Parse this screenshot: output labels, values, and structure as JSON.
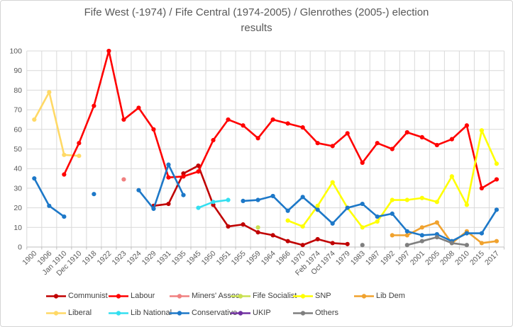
{
  "chart_data": {
    "type": "line",
    "title": "Fife West (-1974) / Fife Central (1974-2005) / Glenrothes (2005-) election results",
    "title_lines": [
      "Fife West (-1974) / Fife Central (1974-2005) / Glenrothes (2005-) election",
      "results"
    ],
    "xlabel": "",
    "ylabel": "",
    "ylim": [
      0,
      100
    ],
    "ytick_step": 10,
    "grid": true,
    "marker": "circle",
    "x_tick_rotation": 45,
    "legend_position": "bottom",
    "values_unit": "percent vote share",
    "categories": [
      "1900",
      "1906",
      "Jan 1910",
      "Dec 1910",
      "1918",
      "1922",
      "1923",
      "1924",
      "1929",
      "1931",
      "1935",
      "1945",
      "1950",
      "1951",
      "1955",
      "1959",
      "1964",
      "1966",
      "1970",
      "Feb 1974",
      "Oct 1974",
      "1979",
      "1983",
      "1987",
      "1992",
      "1997",
      "2001",
      "2005",
      "2008",
      "2010",
      "2015",
      "2017"
    ],
    "legend_rows": [
      [
        "Communist",
        "Labour",
        "Miners' Assoc",
        "Fife Socialist",
        "SNP",
        "Lib Dem"
      ],
      [
        "Liberal",
        "Lib National",
        "Conservative",
        "UKIP",
        "Others"
      ]
    ],
    "series": [
      {
        "name": "Communist",
        "color": "#c00000",
        "values": [
          null,
          null,
          null,
          null,
          null,
          null,
          null,
          null,
          21,
          22,
          37.5,
          41.5,
          21.5,
          10.5,
          11.5,
          7.5,
          6,
          3,
          1,
          4,
          2,
          1.5,
          null,
          null,
          null,
          null,
          null,
          null,
          null,
          null,
          null,
          null
        ]
      },
      {
        "name": "Labour",
        "color": "#ff0000",
        "values": [
          null,
          null,
          37,
          53,
          72,
          100,
          65,
          71,
          60,
          35.5,
          36,
          38.5,
          54.5,
          65,
          62,
          55.5,
          65,
          63,
          61,
          53,
          51.5,
          58,
          43,
          53,
          50,
          58.5,
          56,
          52,
          55,
          62,
          30,
          34.5
        ]
      },
      {
        "name": "Miners' Assoc",
        "color": "#f08080",
        "values": [
          null,
          null,
          null,
          null,
          null,
          null,
          34.5,
          null,
          null,
          null,
          null,
          null,
          null,
          null,
          null,
          null,
          null,
          null,
          null,
          null,
          null,
          null,
          null,
          null,
          null,
          null,
          null,
          null,
          null,
          null,
          null,
          null
        ]
      },
      {
        "name": "Fife Socialist",
        "color": "#c9e052",
        "values": [
          null,
          null,
          null,
          null,
          null,
          null,
          null,
          null,
          null,
          null,
          null,
          null,
          null,
          null,
          null,
          10,
          null,
          null,
          null,
          null,
          null,
          null,
          null,
          null,
          null,
          null,
          null,
          null,
          null,
          null,
          null,
          null
        ]
      },
      {
        "name": "SNP",
        "color": "#ffff00",
        "values": [
          null,
          null,
          null,
          null,
          null,
          null,
          null,
          null,
          null,
          null,
          null,
          null,
          null,
          null,
          null,
          null,
          null,
          13.5,
          10.5,
          21,
          33,
          20,
          10,
          13,
          24,
          24,
          25,
          23,
          36,
          21.5,
          59.5,
          42.5
        ]
      },
      {
        "name": "Lib Dem",
        "color": "#f0a22e",
        "values": [
          null,
          null,
          null,
          null,
          null,
          null,
          null,
          null,
          null,
          null,
          null,
          null,
          null,
          null,
          null,
          null,
          null,
          null,
          null,
          null,
          null,
          null,
          null,
          null,
          6,
          6,
          10,
          12.5,
          2,
          8,
          2,
          3
        ]
      },
      {
        "name": "Liberal",
        "color": "#ffd966",
        "values": [
          65,
          79,
          47,
          46.5,
          null,
          null,
          null,
          null,
          null,
          null,
          null,
          null,
          null,
          null,
          null,
          null,
          null,
          null,
          null,
          null,
          null,
          null,
          null,
          null,
          null,
          null,
          null,
          null,
          null,
          null,
          null,
          null
        ]
      },
      {
        "name": "Lib National",
        "color": "#33dff0",
        "values": [
          null,
          null,
          null,
          null,
          null,
          null,
          null,
          null,
          null,
          null,
          null,
          20,
          23,
          24,
          null,
          null,
          null,
          null,
          null,
          null,
          null,
          null,
          null,
          null,
          null,
          null,
          null,
          null,
          null,
          null,
          null,
          null
        ]
      },
      {
        "name": "Conservative",
        "color": "#1d78c8",
        "values": [
          35,
          21,
          15.5,
          null,
          27,
          null,
          null,
          29,
          19.5,
          42,
          26.5,
          null,
          null,
          null,
          23.5,
          24,
          26,
          18.5,
          25.5,
          19,
          12,
          20,
          22,
          15.5,
          17,
          8,
          6,
          6.5,
          3,
          7,
          7,
          19
        ]
      },
      {
        "name": "UKIP",
        "color": "#7030a0",
        "values": [
          null,
          null,
          null,
          null,
          null,
          null,
          null,
          null,
          null,
          null,
          null,
          null,
          null,
          null,
          null,
          null,
          null,
          null,
          null,
          null,
          null,
          null,
          null,
          null,
          null,
          null,
          null,
          null,
          null,
          null,
          null,
          null
        ]
      },
      {
        "name": "Others",
        "color": "#7f7f7f",
        "values": [
          null,
          null,
          null,
          null,
          null,
          null,
          null,
          null,
          null,
          null,
          null,
          null,
          null,
          null,
          null,
          null,
          null,
          null,
          null,
          null,
          null,
          null,
          1,
          null,
          null,
          1,
          3,
          5,
          2,
          1,
          null,
          null
        ]
      }
    ]
  }
}
